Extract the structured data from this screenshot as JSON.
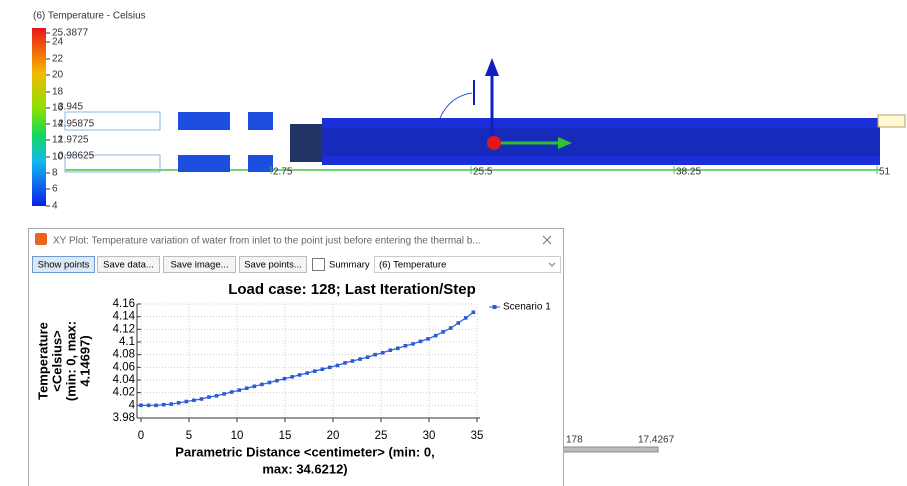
{
  "scene": {
    "colorbar_title": "(6) Temperature - Celsius",
    "colorbar_labels": [
      "25.3877",
      "24",
      "22",
      "20",
      "18",
      "16",
      "14",
      "12",
      "10",
      "8",
      "6",
      "4"
    ],
    "overlay_labels": [
      "3.945",
      "2.95875",
      "1.9725",
      "0.98625"
    ],
    "ruler_labels": [
      "2.75",
      "25.5",
      "38.25",
      "51"
    ],
    "bottom_labels": [
      "178",
      "17.4267"
    ]
  },
  "window": {
    "title": "XY Plot: Temperature variation of water from inlet to the point just before entering the thermal b...",
    "buttons": [
      "Show points",
      "Save data...",
      "Save image...",
      "Save points..."
    ],
    "summary": "Summary",
    "dropdown": "(6) Temperature"
  },
  "chart_data": {
    "type": "line",
    "title": "Load case: 128; Last Iteration/Step",
    "ylabel": [
      "Temperature",
      "<Celsius>",
      "(min: 0, max:",
      "4.14697)"
    ],
    "xlabel": [
      "Parametric Distance <centimeter> (min: 0,",
      "max: 34.6212)"
    ],
    "xlim": [
      0,
      35
    ],
    "xticks": [
      0,
      5,
      10,
      15,
      20,
      25,
      30,
      35
    ],
    "ylim": [
      3.98,
      4.16
    ],
    "yticks": [
      3.98,
      4,
      4.02,
      4.04,
      4.06,
      4.08,
      4.1,
      4.12,
      4.14,
      4.16
    ],
    "grid": true,
    "series": [
      {
        "name": "Scenario 1",
        "color": "#2b5bd7",
        "x": [
          0,
          0.79,
          1.57,
          2.36,
          3.15,
          3.93,
          4.72,
          5.51,
          6.3,
          7.08,
          7.87,
          8.66,
          9.44,
          10.23,
          11.02,
          11.8,
          12.59,
          13.38,
          14.16,
          14.95,
          15.74,
          16.52,
          17.31,
          18.1,
          18.89,
          19.67,
          20.46,
          21.25,
          22.03,
          22.82,
          23.61,
          24.39,
          25.18,
          25.97,
          26.75,
          27.54,
          28.33,
          29.11,
          29.9,
          30.69,
          31.47,
          32.26,
          33.05,
          33.83,
          34.62
        ],
        "values": [
          4.0,
          4.0,
          4.0,
          4.001,
          4.002,
          4.004,
          4.006,
          4.008,
          4.01,
          4.013,
          4.015,
          4.018,
          4.021,
          4.024,
          4.027,
          4.03,
          4.033,
          4.036,
          4.039,
          4.042,
          4.045,
          4.048,
          4.051,
          4.054,
          4.057,
          4.06,
          4.063,
          4.067,
          4.07,
          4.073,
          4.076,
          4.08,
          4.083,
          4.087,
          4.09,
          4.094,
          4.097,
          4.101,
          4.105,
          4.11,
          4.116,
          4.122,
          4.13,
          4.138,
          4.14697
        ]
      }
    ]
  }
}
